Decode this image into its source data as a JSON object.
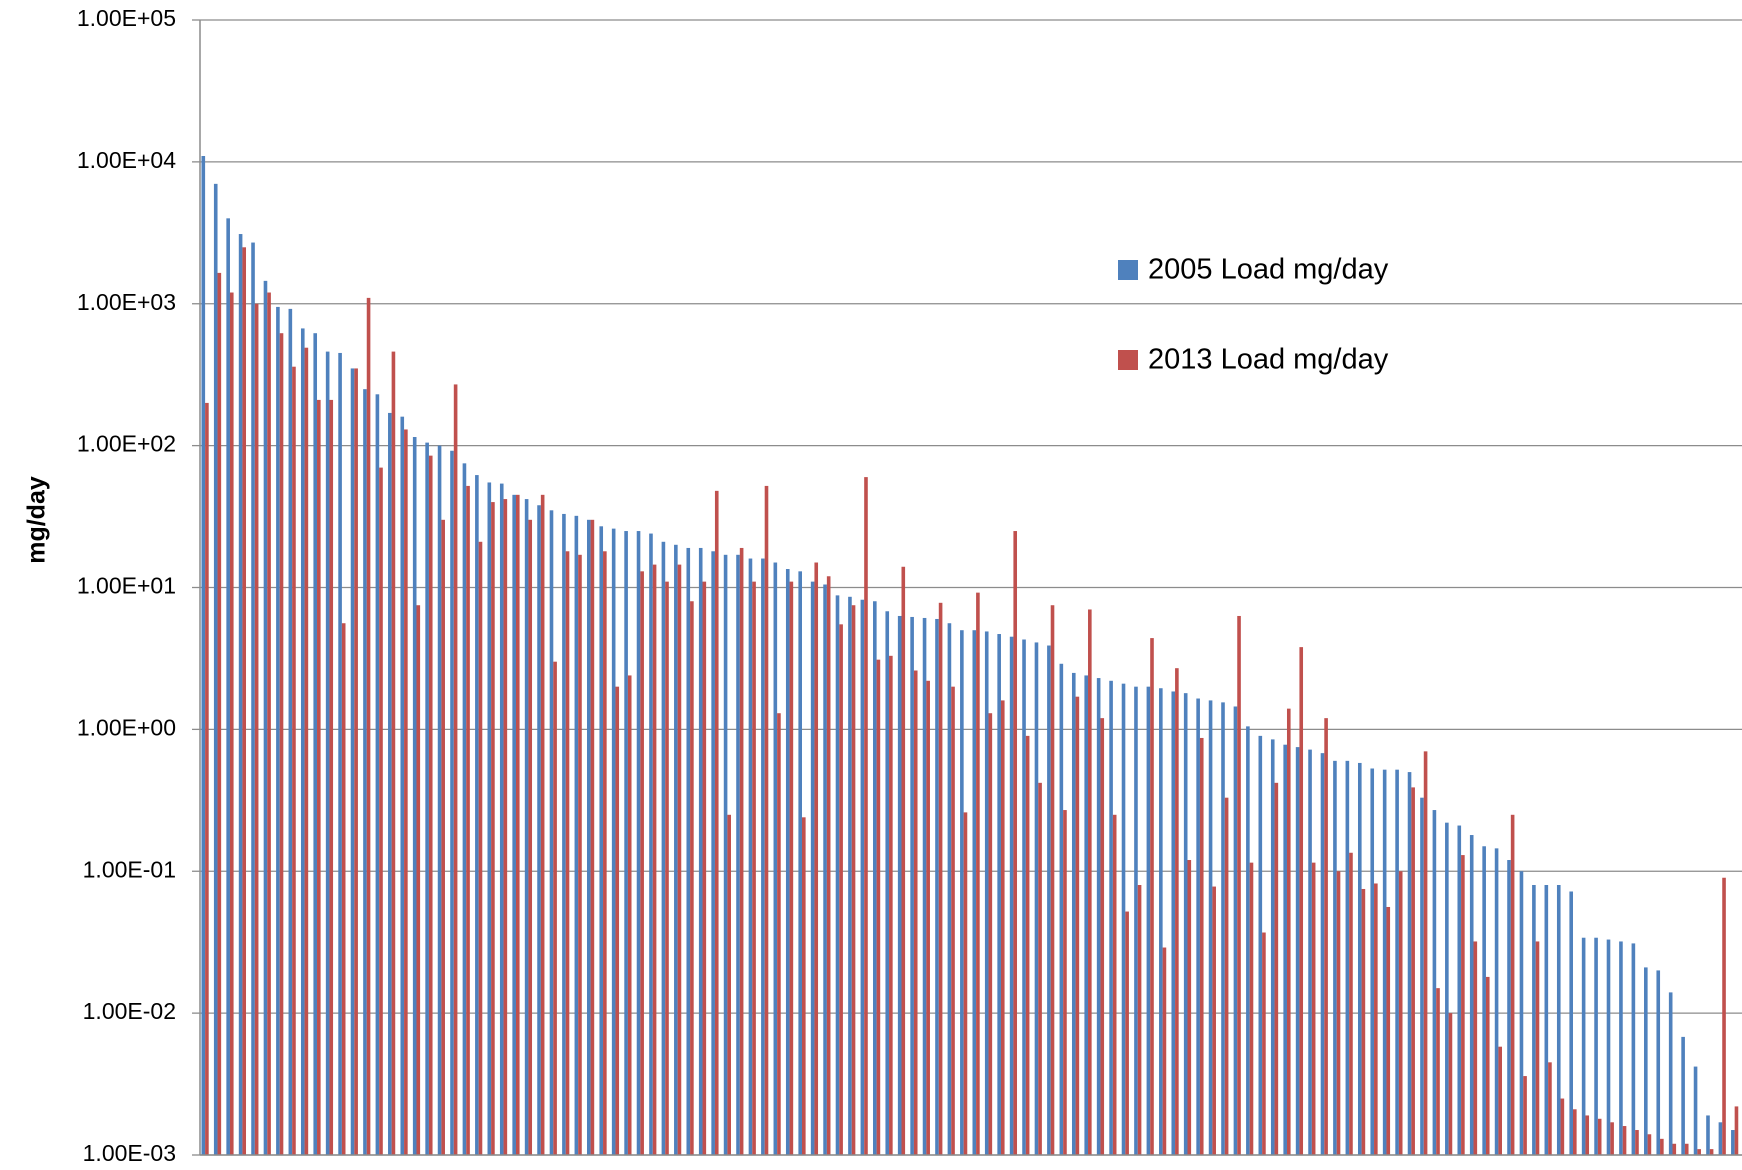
{
  "chart_data": {
    "type": "bar",
    "y_label": "mg/day",
    "log_scale": true,
    "grid": true,
    "legend": "upper center",
    "categories": [
      null,
      null,
      null,
      null,
      null,
      null,
      null,
      null,
      null,
      null,
      null,
      null,
      null,
      null,
      null,
      null,
      null,
      null,
      null,
      null,
      null,
      null,
      null,
      null,
      null,
      null,
      null,
      null,
      null,
      null,
      null,
      null,
      null,
      null,
      null,
      null,
      null,
      null,
      null,
      null,
      null,
      null,
      null,
      null,
      null,
      null,
      null,
      null,
      null,
      null,
      null,
      null,
      null,
      null,
      null,
      null,
      null,
      null,
      null,
      null,
      null,
      null,
      null,
      null,
      null,
      null,
      null,
      null,
      null,
      null,
      null,
      null,
      null,
      null,
      null,
      null,
      null,
      null,
      null,
      null,
      null,
      null,
      null,
      null,
      null,
      null,
      null,
      null,
      null,
      null,
      null,
      null,
      null,
      null,
      null,
      null,
      null,
      null,
      null,
      null,
      null,
      null,
      null,
      null,
      null,
      null,
      null,
      null,
      null,
      null,
      null,
      null,
      null,
      null,
      null,
      null,
      null,
      null,
      null,
      null,
      null,
      null,
      null,
      null
    ],
    "series": [
      {
        "name": "2005 Load mg/day",
        "color": "#4f81bd",
        "values": [
          11000,
          7000,
          4000,
          3100,
          2700,
          1450,
          950,
          920,
          670,
          620,
          460,
          450,
          350,
          250,
          230,
          170,
          160,
          115,
          105,
          100,
          92,
          75,
          62,
          55,
          54,
          45,
          42,
          38,
          35,
          33,
          32,
          30,
          27,
          26,
          25,
          25,
          24,
          21,
          20,
          19,
          19,
          18,
          17,
          17,
          16,
          16,
          15,
          13.5,
          13,
          11,
          10.5,
          8.8,
          8.6,
          8.2,
          8.0,
          6.8,
          6.3,
          6.2,
          6.1,
          6.0,
          5.6,
          5.0,
          5.0,
          4.9,
          4.7,
          4.5,
          4.3,
          4.1,
          3.9,
          2.9,
          2.5,
          2.4,
          2.3,
          2.2,
          2.1,
          2.0,
          2.0,
          1.95,
          1.85,
          1.8,
          1.65,
          1.6,
          1.55,
          1.45,
          1.05,
          0.9,
          0.85,
          0.78,
          0.75,
          0.72,
          0.68,
          0.6,
          0.6,
          0.58,
          0.53,
          0.52,
          0.52,
          0.5,
          0.33,
          0.27,
          0.22,
          0.21,
          0.18,
          0.15,
          0.145,
          0.12,
          0.1,
          0.08,
          0.08,
          0.08,
          0.072,
          0.034,
          0.034,
          0.033,
          0.032,
          0.031,
          0.021,
          0.02,
          0.014,
          0.0068,
          0.0042,
          0.0019,
          0.0017,
          0.0015
        ]
      },
      {
        "name": "2013 Load mg/day",
        "color": "#c0504d",
        "values": [
          200,
          1650,
          1200,
          2500,
          1000,
          1200,
          620,
          360,
          490,
          210,
          210,
          5.6,
          350,
          1100,
          70,
          460,
          130,
          7.5,
          85,
          30,
          270,
          52,
          21,
          40,
          42,
          45,
          30,
          45,
          3.0,
          18,
          17,
          30,
          18,
          2.0,
          2.4,
          13,
          14.5,
          11,
          14.5,
          8,
          11,
          48,
          0.25,
          19,
          11,
          52,
          1.3,
          11,
          0.24,
          15,
          12,
          5.5,
          7.5,
          60,
          3.1,
          3.3,
          14,
          2.6,
          2.2,
          7.8,
          2.0,
          0.26,
          9.2,
          1.3,
          1.6,
          25,
          0.9,
          0.42,
          7.5,
          0.27,
          1.7,
          7.0,
          1.2,
          0.25,
          0.052,
          0.08,
          4.4,
          0.029,
          2.7,
          0.12,
          0.87,
          0.078,
          0.33,
          6.3,
          0.115,
          0.037,
          0.42,
          1.4,
          3.8,
          0.115,
          1.2,
          0.1,
          0.135,
          0.075,
          0.082,
          0.056,
          0.1,
          0.39,
          0.7,
          0.015,
          0.01,
          0.13,
          0.032,
          0.018,
          0.0058,
          0.25,
          0.0036,
          0.032,
          0.0045,
          0.0025,
          0.0021,
          0.0019,
          0.0018,
          0.0017,
          0.0016,
          0.0015,
          0.0014,
          0.0013,
          0.0012,
          0.0012,
          0.0011,
          0.0011,
          0.09,
          0.0022
        ]
      }
    ],
    "ylim": [
      0.001,
      100000
    ],
    "yticks": [
      {
        "value": 0.001,
        "label": "1.00E-03"
      },
      {
        "value": 0.01,
        "label": "1.00E-02"
      },
      {
        "value": 0.1,
        "label": "1.00E-01"
      },
      {
        "value": 1,
        "label": "1.00E+00"
      },
      {
        "value": 10,
        "label": "1.00E+01"
      },
      {
        "value": 100,
        "label": "1.00E+02"
      },
      {
        "value": 1000,
        "label": "1.00E+03"
      },
      {
        "value": 10000,
        "label": "1.00E+04"
      },
      {
        "value": 100000,
        "label": "1.00E+05"
      }
    ]
  }
}
